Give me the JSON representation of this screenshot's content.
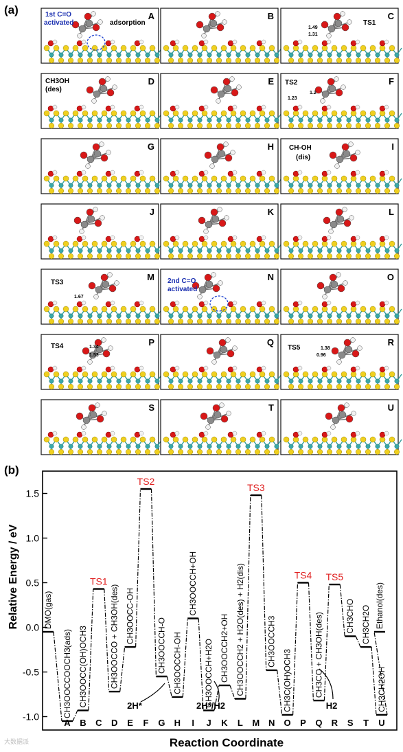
{
  "panel_a": {
    "label": "(a)",
    "frames": [
      {
        "letter": "A",
        "notes": [
          "1st C=O",
          "activated",
          "adsorption"
        ]
      },
      {
        "letter": "B",
        "notes": []
      },
      {
        "letter": "C",
        "notes": [
          "TS1",
          "1.49",
          "1.31"
        ]
      },
      {
        "letter": "D",
        "notes": [
          "CH3OH",
          "(des)"
        ]
      },
      {
        "letter": "E",
        "notes": []
      },
      {
        "letter": "F",
        "notes": [
          "TS2",
          "1.23",
          "1.2"
        ]
      },
      {
        "letter": "G",
        "notes": []
      },
      {
        "letter": "H",
        "notes": []
      },
      {
        "letter": "I",
        "notes": [
          "CH-OH",
          "(dis)"
        ]
      },
      {
        "letter": "J",
        "notes": []
      },
      {
        "letter": "K",
        "notes": []
      },
      {
        "letter": "L",
        "notes": []
      },
      {
        "letter": "M",
        "notes": [
          "TS3",
          "1.67"
        ]
      },
      {
        "letter": "N",
        "notes": [
          "2nd C=O",
          "activated"
        ]
      },
      {
        "letter": "O",
        "notes": []
      },
      {
        "letter": "P",
        "notes": [
          "TS4",
          "1.34",
          "1.53"
        ]
      },
      {
        "letter": "Q",
        "notes": []
      },
      {
        "letter": "R",
        "notes": [
          "TS5",
          "1.38",
          "0.96"
        ]
      },
      {
        "letter": "S",
        "notes": []
      },
      {
        "letter": "T",
        "notes": []
      },
      {
        "letter": "U",
        "notes": []
      }
    ]
  },
  "panel_b": {
    "label": "(b)",
    "chart_data": {
      "type": "line",
      "xlabel": "Reaction Coordinate",
      "ylabel": "Relative Energy / eV",
      "ylim": [
        -1.15,
        1.75
      ],
      "yticks": [
        "-1.0",
        "-0.5",
        "0.0",
        "0.5",
        "1.0",
        "1.5"
      ],
      "categories": [
        "A",
        "B",
        "C",
        "D",
        "E",
        "F",
        "G",
        "H",
        "I",
        "J",
        "K",
        "L",
        "M",
        "N",
        "O",
        "P",
        "Q",
        "R",
        "S",
        "T",
        "U"
      ],
      "levels": [
        {
          "label": "DMO(gas)",
          "x": "A0",
          "y": -0.05,
          "color": "#000000"
        },
        {
          "label": "CH3OOCCOOCH3(ads)",
          "x": "A",
          "y": -1.05,
          "color": "#000000"
        },
        {
          "label": "CH3OOCC(OH)OCH3",
          "x": "B",
          "y": -0.93,
          "color": "#000000"
        },
        {
          "label": "TS1",
          "x": "C",
          "y": 0.43,
          "color": "#e02020"
        },
        {
          "label": "CH3OOCCO + CH3OH(des)",
          "x": "D",
          "y": -0.72,
          "color": "#000000"
        },
        {
          "label": "CH3OOCC-OH",
          "x": "E",
          "y": -0.22,
          "color": "#000000"
        },
        {
          "label": "TS2",
          "x": "F",
          "y": 1.55,
          "color": "#e02020"
        },
        {
          "label": "CH3OOCCH-O",
          "x": "G",
          "y": -0.55,
          "color": "#000000"
        },
        {
          "label": "CH3OOCCH-OH",
          "x": "H",
          "y": -0.78,
          "color": "#000000"
        },
        {
          "label": "CH3OOCCH+OH",
          "x": "I",
          "y": 0.1,
          "color": "#000000"
        },
        {
          "label": "CH3OOCCH+H2O",
          "x": "J",
          "y": -0.93,
          "color": "#000000"
        },
        {
          "label": "CH3OOCCH2+OH",
          "x": "K",
          "y": -0.65,
          "color": "#000000"
        },
        {
          "label": "CH3OOCCH2 + H2O(des) + H2(dis)",
          "x": "L",
          "y": -0.8,
          "color": "#000000"
        },
        {
          "label": "TS3",
          "x": "M",
          "y": 1.48,
          "color": "#e02020"
        },
        {
          "label": "CH3OOCCH3",
          "x": "N",
          "y": -0.48,
          "color": "#000000"
        },
        {
          "label": "CH3C(OH)OCH3",
          "x": "O",
          "y": -0.98,
          "color": "#000000"
        },
        {
          "label": "TS4",
          "x": "P",
          "y": 0.5,
          "color": "#e02020"
        },
        {
          "label": "CH3CO + CH3OH(des)",
          "x": "Q",
          "y": -0.82,
          "color": "#000000"
        },
        {
          "label": "TS5",
          "x": "R",
          "y": 0.48,
          "color": "#e02020"
        },
        {
          "label": "CH3CHO",
          "x": "S",
          "y": -0.1,
          "color": "#000000"
        },
        {
          "label": "CH3CH2O",
          "x": "T",
          "y": -0.22,
          "color": "#000000"
        },
        {
          "label": "CH3CH2OH",
          "x": "U",
          "y": -0.98,
          "color": "#000000"
        },
        {
          "label": "Ethanol(des)",
          "x": "U2",
          "y": -0.05,
          "color": "#000000"
        }
      ],
      "annotations": [
        "2H*",
        "2H*/H2",
        "H2"
      ]
    }
  },
  "watermark": "大数据派"
}
